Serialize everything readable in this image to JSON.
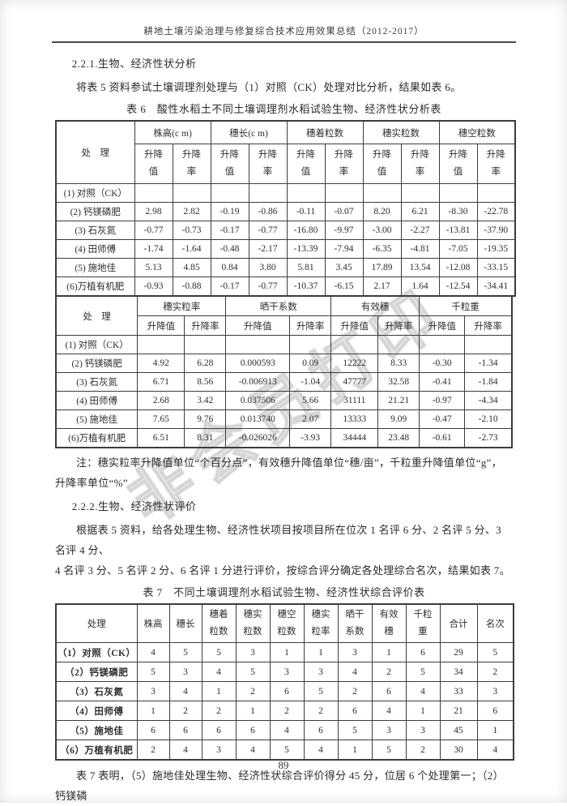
{
  "header": {
    "title": "耕地土壤污染治理与修复综合技术应用效果总结（2012-2017）"
  },
  "watermark": {
    "text": "非会员打印"
  },
  "sections": {
    "s221_heading": "2.2.1.生物、经济性状分析",
    "s221_body": "将表 5 资料参试土壤调理剂处理与（1）对照（CK）处理对比分析，结果如表 6。",
    "table6_caption": "表 6　酸性水稻土不同土壤调理剂水稻试验生物、经济性状分析表",
    "note_line1": "注：穗实粒率升降值单位“个百分点”，有效穗升降值单位“穗/亩”，千粒重升降值单位“g”，",
    "note_line2": "升降率单位“%”",
    "s222_heading": "2.2.2.生物、经济性状评价",
    "s222_body_line1": "根据表 5 资料，给各处理生物、经济性状项目按项目所在位次 1 名评 6 分、2 名评 5 分、3 名评 4 分、",
    "s222_body_line2": "4 名评 3 分、5 名评 2 分、6 名评 1 分进行评价，按综合评分确定各处理综合名次，结果如表 7。",
    "table7_caption": "表 7　不同土壤调理剂水稻试验生物、经济性状综合评价表",
    "closing": "表 7 表明，（5）施地佳处理生物、经济性状综合评价得分 45 分，位居 6 个处理第一；（2）钙镁磷"
  },
  "table6a": {
    "corner_label": "处　理",
    "groups": [
      "株高(c m)",
      "穗长(c m)",
      "穗着粒数",
      "穗实粒数",
      "穗空粒数"
    ],
    "sub_value": "升降值",
    "sub_rate": "升降率",
    "rows": [
      {
        "label": "(1) 对照（CK）",
        "values": [
          "",
          "",
          "",
          "",
          "",
          "",
          "",
          "",
          "",
          ""
        ]
      },
      {
        "label": "(2) 钙镁磷肥",
        "values": [
          "2.98",
          "2.82",
          "-0.19",
          "-0.86",
          "-0.11",
          "-0.07",
          "8.20",
          "6.21",
          "-8.30",
          "-22.78"
        ]
      },
      {
        "label": "(3) 石灰氮",
        "values": [
          "-0.77",
          "-0.73",
          "-0.17",
          "-0.77",
          "-16.80",
          "-9.97",
          "-3.00",
          "-2.27",
          "-13.81",
          "-37.90"
        ]
      },
      {
        "label": "(4) 田师傅",
        "values": [
          "-1.74",
          "-1.64",
          "-0.48",
          "-2.17",
          "-13.39",
          "-7.94",
          "-6.35",
          "-4.81",
          "-7.05",
          "-19.35"
        ]
      },
      {
        "label": "(5) 施地佳",
        "values": [
          "5.13",
          "4.85",
          "0.84",
          "3.80",
          "5.81",
          "3.45",
          "17.89",
          "13.54",
          "-12.08",
          "-33.15"
        ]
      },
      {
        "label": "(6)万植有机肥",
        "values": [
          "-0.93",
          "-0.88",
          "-0.17",
          "-0.77",
          "-10.37",
          "-6.15",
          "2.17",
          "1.64",
          "-12.54",
          "-34.41"
        ]
      }
    ]
  },
  "table6b": {
    "corner_label": "处　理",
    "groups": [
      "穗实粒率",
      "晒干系数",
      "有效穗",
      "千粒重"
    ],
    "sub_value": "升降值",
    "sub_rate": "升降率",
    "rows": [
      {
        "label": "(1) 对照（CK）",
        "values": [
          "",
          "",
          "",
          "",
          "",
          "",
          "",
          ""
        ]
      },
      {
        "label": "(2) 钙镁磷肥",
        "values": [
          "4.92",
          "6.28",
          "0.000593",
          "0.09",
          "12222",
          "8.33",
          "-0.30",
          "-1.34"
        ]
      },
      {
        "label": "(3) 石灰氮",
        "values": [
          "6.71",
          "8.56",
          "-0.006913",
          "-1.04",
          "47777",
          "32.58",
          "-0.41",
          "-1.84"
        ]
      },
      {
        "label": "(4) 田师傅",
        "values": [
          "2.68",
          "3.42",
          "0.037506",
          "5.66",
          "31111",
          "21.21",
          "-0.97",
          "-4.34"
        ]
      },
      {
        "label": "(5) 施地佳",
        "values": [
          "7.65",
          "9.76",
          "0.013740",
          "2.07",
          "13333",
          "9.09",
          "-0.47",
          "-2.10"
        ]
      },
      {
        "label": "(6)万植有机肥",
        "values": [
          "6.51",
          "8.31",
          "-0.026026",
          "-3.93",
          "34444",
          "23.48",
          "-0.61",
          "-2.73"
        ]
      }
    ]
  },
  "table7": {
    "headers": [
      "处理",
      "株高",
      "穗长",
      "穗着粒数",
      "穗实粒数",
      "穗空粒数",
      "穗实粒率",
      "晒干系数",
      "有效穗",
      "千粒重",
      "合计",
      "名次"
    ],
    "rows": [
      {
        "label": "（1）对照（CK）",
        "values": [
          "4",
          "5",
          "5",
          "3",
          "1",
          "1",
          "3",
          "1",
          "6",
          "29",
          "5"
        ]
      },
      {
        "label": "（2）钙镁磷肥",
        "values": [
          "5",
          "3",
          "4",
          "5",
          "3",
          "3",
          "4",
          "2",
          "5",
          "34",
          "2"
        ]
      },
      {
        "label": "（3）石灰氮",
        "values": [
          "3",
          "4",
          "1",
          "2",
          "6",
          "5",
          "2",
          "6",
          "4",
          "33",
          "3"
        ]
      },
      {
        "label": "（4）田师傅",
        "values": [
          "1",
          "2",
          "2",
          "1",
          "2",
          "2",
          "6",
          "4",
          "1",
          "21",
          "6"
        ]
      },
      {
        "label": "（5）施地佳",
        "values": [
          "6",
          "6",
          "6",
          "6",
          "4",
          "6",
          "5",
          "3",
          "3",
          "45",
          "1"
        ]
      },
      {
        "label": "（6）万植有机肥",
        "values": [
          "2",
          "4",
          "3",
          "4",
          "5",
          "4",
          "1",
          "5",
          "2",
          "30",
          "4"
        ]
      }
    ]
  },
  "footer": {
    "page_number": "89"
  }
}
